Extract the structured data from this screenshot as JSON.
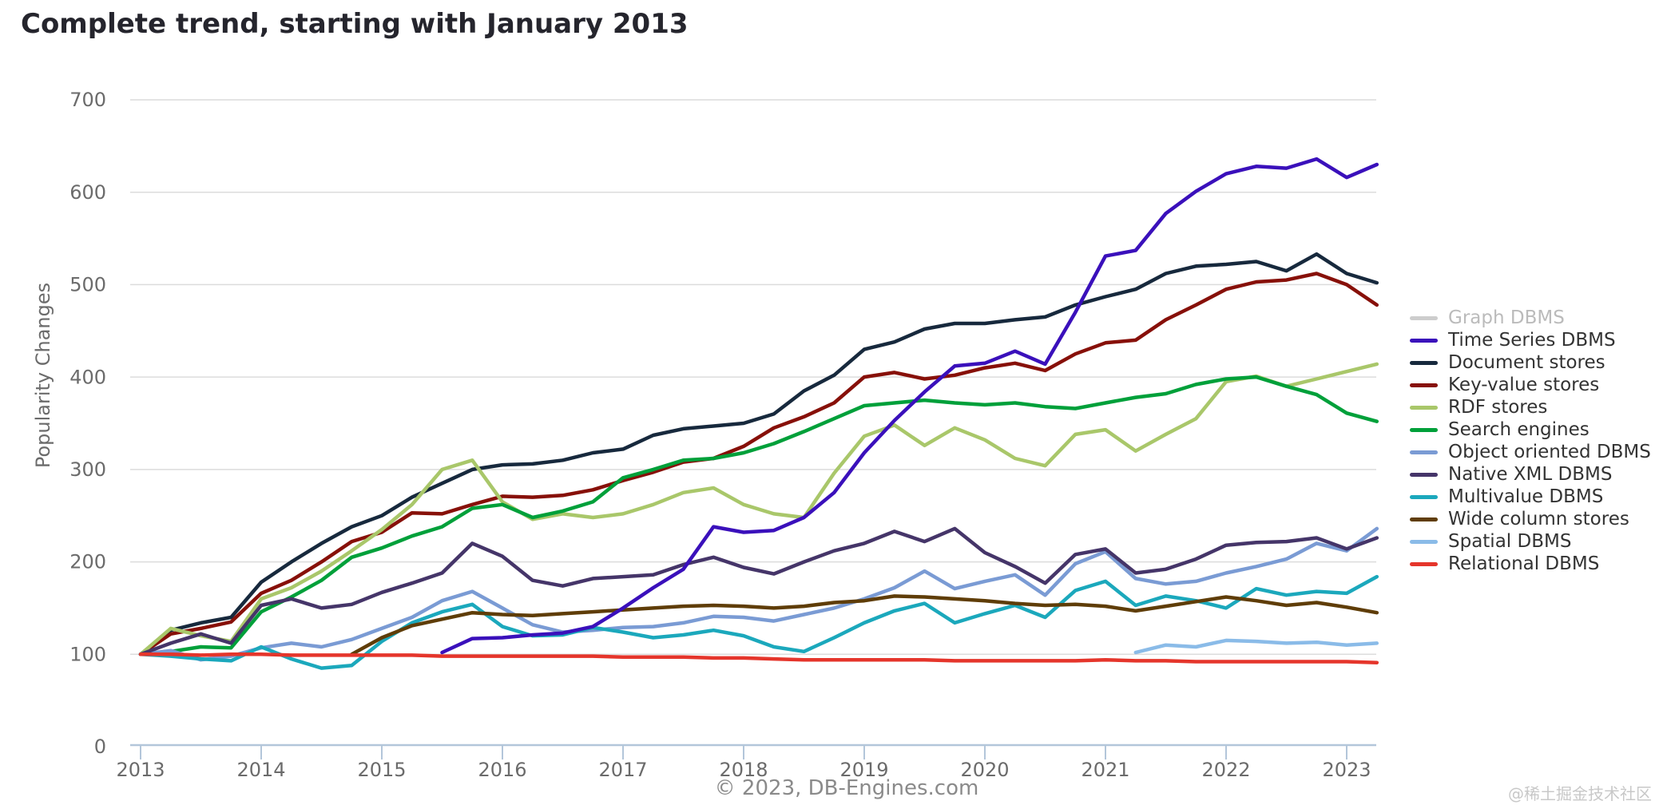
{
  "title": "Complete trend, starting with January 2013",
  "footer": "© 2023, DB-Engines.com",
  "watermark": "@稀土掘金技术社区",
  "colors": {
    "background": "#ffffff",
    "grid": "#dcdcdc",
    "axis": "#b3c6da",
    "tick_label": "#6b6b6b",
    "title": "#25252d",
    "legend_text": "#333333",
    "legend_disabled_text": "#bbbbbb",
    "footer_text": "#8a8a8a",
    "watermark_text": "#c8c8c8"
  },
  "chart_data": {
    "type": "line",
    "title": "Complete trend, starting with January 2013",
    "xlabel": "",
    "ylabel": "Popularity Changes",
    "xlim": [
      2013,
      2023.3
    ],
    "ylim": [
      0,
      700
    ],
    "grid": true,
    "legend_position": "right",
    "x_ticks": [
      2013,
      2014,
      2015,
      2016,
      2017,
      2018,
      2019,
      2020,
      2021,
      2022,
      2023
    ],
    "y_ticks": [
      0,
      100,
      200,
      300,
      400,
      500,
      600,
      700
    ],
    "x": [
      2013,
      2013.25,
      2013.5,
      2013.75,
      2014,
      2014.25,
      2014.5,
      2014.75,
      2015,
      2015.25,
      2015.5,
      2015.75,
      2016,
      2016.25,
      2016.5,
      2016.75,
      2017,
      2017.25,
      2017.5,
      2017.75,
      2018,
      2018.25,
      2018.5,
      2018.75,
      2019,
      2019.25,
      2019.5,
      2019.75,
      2020,
      2020.25,
      2020.5,
      2020.75,
      2021,
      2021.25,
      2021.5,
      2021.75,
      2022,
      2022.25,
      2022.5,
      2022.75,
      2023,
      2023.25
    ],
    "series": [
      {
        "name": "Graph DBMS",
        "color": "#c9c9c9",
        "hidden": true,
        "z": 0,
        "values": []
      },
      {
        "name": "Time Series DBMS",
        "color": "#3a10bb",
        "z": 11,
        "values": [
          null,
          null,
          null,
          null,
          null,
          null,
          null,
          null,
          null,
          null,
          102,
          117,
          118,
          121,
          123,
          130,
          150,
          172,
          192,
          238,
          232,
          234,
          248,
          275,
          318,
          353,
          384,
          412,
          415,
          428,
          414,
          470,
          531,
          537,
          577,
          601,
          620,
          628,
          626,
          636,
          616,
          630
        ]
      },
      {
        "name": "Document stores",
        "color": "#17293d",
        "z": 1,
        "values": [
          100,
          126,
          134,
          140,
          178,
          200,
          220,
          238,
          250,
          270,
          285,
          300,
          305,
          306,
          310,
          318,
          322,
          337,
          344,
          347,
          350,
          360,
          385,
          402,
          430,
          438,
          452,
          458,
          458,
          462,
          465,
          478,
          487,
          495,
          512,
          520,
          522,
          525,
          515,
          533,
          512,
          502
        ]
      },
      {
        "name": "Key-value stores",
        "color": "#871009",
        "z": 2,
        "values": [
          100,
          122,
          128,
          135,
          166,
          180,
          200,
          222,
          232,
          253,
          252,
          262,
          271,
          270,
          272,
          278,
          288,
          297,
          308,
          312,
          325,
          345,
          357,
          372,
          400,
          405,
          398,
          402,
          410,
          415,
          407,
          425,
          437,
          440,
          462,
          478,
          495,
          503,
          505,
          512,
          500,
          478
        ]
      },
      {
        "name": "RDF stores",
        "color": "#a9c76a",
        "z": 3,
        "values": [
          100,
          128,
          120,
          114,
          160,
          172,
          190,
          212,
          235,
          262,
          300,
          310,
          265,
          246,
          252,
          248,
          252,
          262,
          275,
          280,
          262,
          252,
          248,
          296,
          336,
          348,
          326,
          345,
          332,
          312,
          304,
          338,
          343,
          320,
          338,
          355,
          395,
          401,
          390,
          398,
          406,
          414
        ]
      },
      {
        "name": "Search engines",
        "color": "#00a03a",
        "z": 4,
        "values": [
          100,
          103,
          108,
          107,
          146,
          162,
          180,
          205,
          215,
          228,
          238,
          258,
          262,
          248,
          255,
          265,
          291,
          300,
          310,
          312,
          318,
          328,
          341,
          355,
          369,
          372,
          375,
          372,
          370,
          372,
          368,
          366,
          372,
          378,
          382,
          392,
          398,
          400,
          390,
          381,
          361,
          352
        ]
      },
      {
        "name": "Object oriented DBMS",
        "color": "#7a9bd4",
        "z": 5,
        "values": [
          100,
          104,
          94,
          98,
          107,
          112,
          108,
          116,
          128,
          140,
          158,
          168,
          150,
          132,
          124,
          126,
          129,
          130,
          134,
          141,
          140,
          136,
          143,
          150,
          160,
          172,
          190,
          171,
          179,
          186,
          164,
          198,
          211,
          182,
          176,
          179,
          188,
          195,
          203,
          220,
          212,
          236
        ]
      },
      {
        "name": "Native XML DBMS",
        "color": "#453569",
        "z": 6,
        "values": [
          100,
          112,
          122,
          112,
          153,
          160,
          150,
          154,
          167,
          177,
          188,
          220,
          206,
          180,
          174,
          182,
          184,
          186,
          197,
          205,
          194,
          187,
          200,
          212,
          220,
          233,
          222,
          236,
          210,
          195,
          177,
          208,
          214,
          188,
          192,
          203,
          218,
          221,
          222,
          226,
          214,
          226
        ]
      },
      {
        "name": "Multivalue DBMS",
        "color": "#1ba8bc",
        "z": 7,
        "values": [
          100,
          98,
          95,
          93,
          108,
          95,
          85,
          88,
          114,
          134,
          146,
          154,
          130,
          120,
          121,
          129,
          124,
          118,
          121,
          126,
          120,
          108,
          103,
          118,
          134,
          147,
          155,
          134,
          144,
          153,
          140,
          169,
          179,
          153,
          163,
          158,
          150,
          171,
          164,
          168,
          166,
          184
        ]
      },
      {
        "name": "Wide column stores",
        "color": "#5f3d08",
        "z": 8,
        "values": [
          null,
          null,
          null,
          null,
          null,
          null,
          null,
          100,
          118,
          131,
          138,
          145,
          143,
          142,
          144,
          146,
          148,
          150,
          152,
          153,
          152,
          150,
          152,
          156,
          158,
          163,
          162,
          160,
          158,
          155,
          153,
          154,
          152,
          147,
          152,
          157,
          162,
          158,
          153,
          156,
          151,
          145
        ]
      },
      {
        "name": "Spatial DBMS",
        "color": "#8abbe8",
        "z": 9,
        "values": [
          null,
          null,
          null,
          null,
          null,
          null,
          null,
          null,
          null,
          null,
          null,
          null,
          null,
          null,
          null,
          null,
          null,
          null,
          null,
          null,
          null,
          null,
          null,
          null,
          null,
          null,
          null,
          null,
          null,
          null,
          null,
          null,
          null,
          102,
          110,
          108,
          115,
          114,
          112,
          113,
          110,
          112
        ]
      },
      {
        "name": "Relational DBMS",
        "color": "#e5352b",
        "z": 10,
        "values": [
          100,
          100,
          99,
          100,
          100,
          99,
          99,
          99,
          99,
          99,
          98,
          98,
          98,
          98,
          98,
          98,
          97,
          97,
          97,
          96,
          96,
          95,
          94,
          94,
          94,
          94,
          94,
          93,
          93,
          93,
          93,
          93,
          94,
          93,
          93,
          92,
          92,
          92,
          92,
          92,
          92,
          91
        ]
      }
    ]
  }
}
